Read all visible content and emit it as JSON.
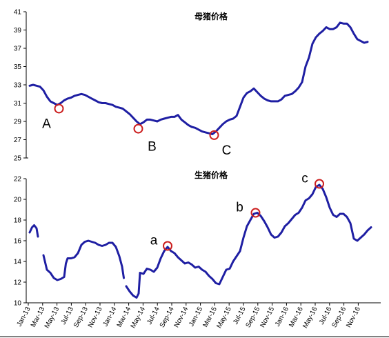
{
  "chart_data": [
    {
      "type": "line",
      "title": "母猪价格",
      "ylim": [
        25,
        41
      ],
      "yticks": [
        25,
        27,
        29,
        31,
        33,
        35,
        37,
        39,
        41
      ],
      "series": [
        {
          "values": [
            [
              0,
              32.9
            ],
            [
              1,
              33.0
            ],
            [
              2,
              32.9
            ],
            [
              3,
              32.8
            ],
            [
              4,
              32.4
            ],
            [
              5,
              31.7
            ],
            [
              6,
              31.2
            ],
            [
              7,
              31.0
            ],
            [
              8,
              30.8
            ],
            [
              9,
              31.0
            ],
            [
              10,
              31.3
            ],
            [
              11,
              31.5
            ],
            [
              12,
              31.6
            ],
            [
              13,
              31.8
            ],
            [
              14,
              31.9
            ],
            [
              15,
              32.0
            ],
            [
              16,
              31.9
            ],
            [
              17,
              31.7
            ],
            [
              18,
              31.5
            ],
            [
              19,
              31.3
            ],
            [
              20,
              31.1
            ],
            [
              21,
              31.0
            ],
            [
              22,
              31.0
            ],
            [
              23,
              30.9
            ],
            [
              24,
              30.8
            ],
            [
              25,
              30.6
            ],
            [
              26,
              30.5
            ],
            [
              27,
              30.4
            ],
            [
              28,
              30.1
            ],
            [
              29,
              29.8
            ],
            [
              30,
              29.4
            ],
            [
              31,
              29.0
            ],
            [
              32,
              28.7
            ],
            [
              33,
              28.9
            ],
            [
              34,
              29.2
            ],
            [
              35,
              29.2
            ],
            [
              36,
              29.1
            ],
            [
              37,
              29.0
            ],
            [
              38,
              29.2
            ],
            [
              39,
              29.3
            ],
            [
              40,
              29.4
            ],
            [
              41,
              29.5
            ],
            [
              42,
              29.5
            ],
            [
              43,
              29.7
            ],
            [
              44,
              29.2
            ],
            [
              45,
              28.9
            ],
            [
              46,
              28.6
            ],
            [
              47,
              28.4
            ],
            [
              48,
              28.3
            ],
            [
              49,
              28.1
            ],
            [
              50,
              27.9
            ],
            [
              51,
              27.8
            ],
            [
              52,
              27.7
            ],
            [
              53,
              27.6
            ],
            [
              54,
              27.9
            ],
            [
              55,
              28.3
            ],
            [
              56,
              28.7
            ],
            [
              57,
              29.0
            ],
            [
              58,
              29.2
            ],
            [
              59,
              29.3
            ],
            [
              60,
              29.6
            ],
            [
              61,
              30.6
            ],
            [
              62,
              31.6
            ],
            [
              63,
              32.1
            ],
            [
              64,
              32.3
            ],
            [
              65,
              32.6
            ],
            [
              66,
              32.2
            ],
            [
              67,
              31.8
            ],
            [
              68,
              31.5
            ],
            [
              69,
              31.3
            ],
            [
              70,
              31.2
            ],
            [
              71,
              31.2
            ],
            [
              72,
              31.2
            ],
            [
              73,
              31.4
            ],
            [
              74,
              31.8
            ],
            [
              75,
              31.9
            ],
            [
              76,
              32.0
            ],
            [
              77,
              32.3
            ],
            [
              78,
              32.7
            ],
            [
              79,
              33.3
            ],
            [
              80,
              35.0
            ],
            [
              81,
              36.0
            ],
            [
              82,
              37.5
            ],
            [
              83,
              38.2
            ],
            [
              84,
              38.6
            ],
            [
              85,
              38.9
            ],
            [
              86,
              39.3
            ],
            [
              87,
              39.1
            ],
            [
              88,
              39.1
            ],
            [
              89,
              39.3
            ],
            [
              90,
              39.8
            ],
            [
              91,
              39.7
            ],
            [
              92,
              39.7
            ],
            [
              93,
              39.3
            ],
            [
              94,
              38.6
            ],
            [
              95,
              38.0
            ],
            [
              96,
              37.8
            ],
            [
              97,
              37.6
            ],
            [
              98,
              37.7
            ]
          ]
        }
      ],
      "markers": [
        {
          "label": "A",
          "x": 8.5,
          "y": 30.4
        },
        {
          "label": "B",
          "x": 31.5,
          "y": 28.2
        },
        {
          "label": "C",
          "x": 53.5,
          "y": 27.5
        }
      ]
    },
    {
      "type": "line",
      "title": "生猪价格",
      "ylim": [
        10,
        22
      ],
      "yticks": [
        10,
        12,
        14,
        16,
        18,
        20,
        22
      ],
      "xticks": [
        "Jan-13",
        "Mar-13",
        "May-13",
        "Jul-13",
        "Sep-13",
        "Nov-13",
        "Jan-14",
        "Mar-14",
        "May-14",
        "Jul-14",
        "Sep-14",
        "Nov-14",
        "Jan-15",
        "Mar-15",
        "May-15",
        "Jul-15",
        "Sep-15",
        "Nov-15",
        "Jan-16",
        "Mar-16",
        "May-16",
        "Jul-16",
        "Sep-16",
        "Nov-16"
      ],
      "series": [
        {
          "segments": [
            [
              [
                0,
                16.8
              ],
              [
                0.7,
                17.3
              ],
              [
                1.3,
                17.5
              ],
              [
                2.0,
                17.2
              ],
              [
                2.4,
                16.4
              ]
            ],
            [
              [
                4,
                14.6
              ],
              [
                4.5,
                13.9
              ],
              [
                5,
                13.2
              ],
              [
                6,
                12.9
              ],
              [
                7,
                12.4
              ],
              [
                8,
                12.2
              ],
              [
                9,
                12.3
              ],
              [
                10,
                12.5
              ],
              [
                10.5,
                13.8
              ],
              [
                11,
                14.3
              ],
              [
                12,
                14.3
              ],
              [
                13,
                14.4
              ],
              [
                14,
                14.8
              ],
              [
                15,
                15.6
              ],
              [
                16,
                15.9
              ],
              [
                17,
                16.0
              ],
              [
                18,
                15.9
              ],
              [
                19,
                15.8
              ],
              [
                20,
                15.6
              ],
              [
                21,
                15.5
              ],
              [
                22,
                15.6
              ],
              [
                23,
                15.8
              ],
              [
                24,
                15.8
              ],
              [
                25,
                15.4
              ],
              [
                26,
                14.5
              ],
              [
                26.8,
                13.5
              ],
              [
                27.3,
                12.4
              ]
            ],
            [
              [
                28,
                11.6
              ],
              [
                29,
                11.1
              ],
              [
                30,
                10.7
              ],
              [
                31,
                10.5
              ],
              [
                31.6,
                10.9
              ],
              [
                32,
                12.9
              ],
              [
                33,
                12.8
              ],
              [
                34,
                13.3
              ],
              [
                35,
                13.2
              ],
              [
                36,
                13.0
              ],
              [
                37,
                13.4
              ],
              [
                38,
                14.3
              ],
              [
                39,
                15.0
              ],
              [
                40,
                15.4
              ],
              [
                41,
                15.0
              ],
              [
                42,
                14.8
              ],
              [
                43,
                14.4
              ],
              [
                44,
                14.1
              ],
              [
                45,
                13.8
              ],
              [
                46,
                13.9
              ],
              [
                47,
                13.7
              ],
              [
                48,
                13.4
              ],
              [
                49,
                13.5
              ],
              [
                50,
                13.2
              ],
              [
                51,
                13.0
              ],
              [
                52,
                12.6
              ],
              [
                53,
                12.3
              ],
              [
                54,
                11.9
              ],
              [
                55,
                11.8
              ],
              [
                56,
                12.5
              ],
              [
                57,
                13.2
              ],
              [
                58,
                13.3
              ],
              [
                59,
                14.0
              ],
              [
                60,
                14.5
              ],
              [
                61,
                15.0
              ],
              [
                62,
                16.3
              ],
              [
                63,
                17.4
              ],
              [
                64,
                18.0
              ],
              [
                65,
                18.6
              ],
              [
                66,
                18.7
              ],
              [
                67,
                18.4
              ],
              [
                68,
                17.9
              ],
              [
                69,
                17.3
              ],
              [
                70,
                16.6
              ],
              [
                71,
                16.3
              ],
              [
                72,
                16.4
              ],
              [
                73,
                16.8
              ],
              [
                74,
                17.4
              ],
              [
                75,
                17.7
              ],
              [
                76,
                18.1
              ],
              [
                77,
                18.5
              ],
              [
                78,
                18.7
              ],
              [
                79,
                19.2
              ],
              [
                80,
                19.9
              ],
              [
                81,
                20.1
              ],
              [
                82,
                20.5
              ],
              [
                83,
                21.2
              ],
              [
                84,
                21.4
              ],
              [
                85,
                21.0
              ],
              [
                86,
                20.2
              ],
              [
                87,
                19.2
              ],
              [
                88,
                18.5
              ],
              [
                89,
                18.3
              ],
              [
                90,
                18.6
              ],
              [
                91,
                18.6
              ],
              [
                92,
                18.3
              ],
              [
                93,
                17.7
              ],
              [
                94,
                16.2
              ],
              [
                95,
                16.0
              ],
              [
                96,
                16.3
              ],
              [
                97,
                16.6
              ],
              [
                98,
                17.0
              ],
              [
                99,
                17.3
              ]
            ]
          ]
        }
      ],
      "markers": [
        {
          "label": "a",
          "x": 40,
          "y": 15.5
        },
        {
          "label": "b",
          "x": 65.5,
          "y": 18.7
        },
        {
          "label": "c",
          "x": 84,
          "y": 21.5
        }
      ]
    }
  ]
}
